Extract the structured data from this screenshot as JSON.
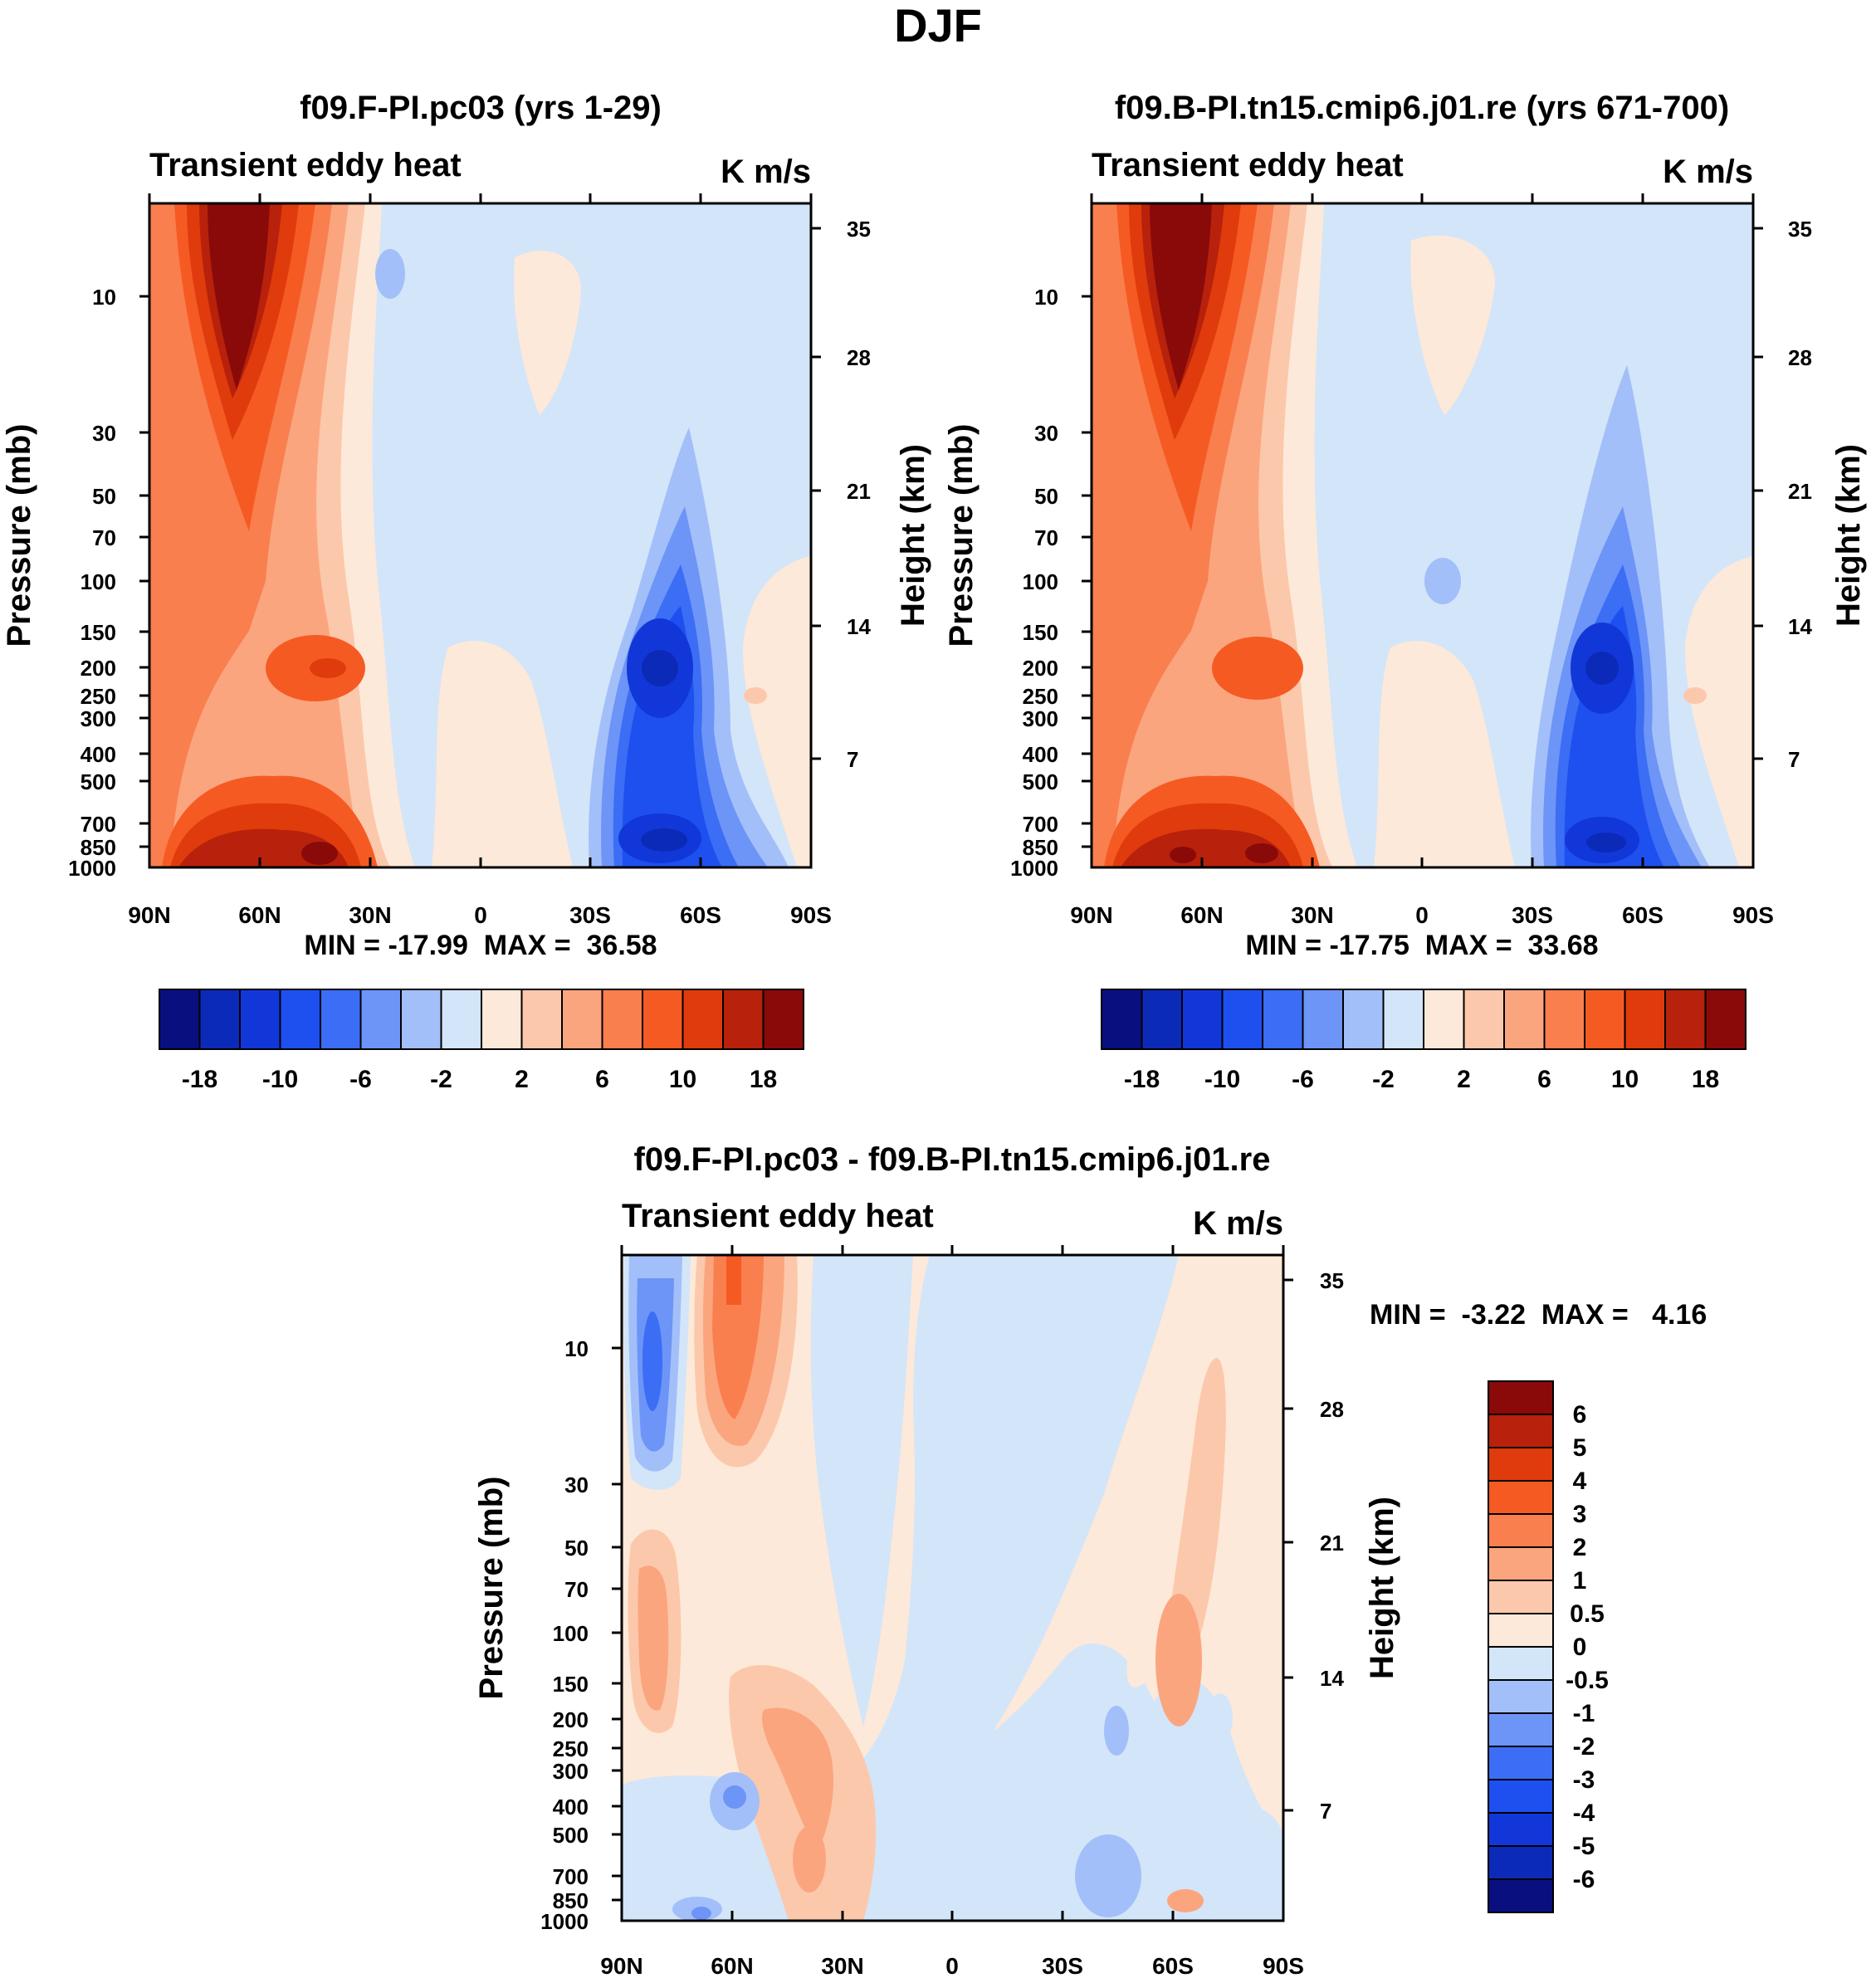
{
  "figure_title": "DJF",
  "colors": {
    "neg": [
      "#0a0f80",
      "#0c2ab8",
      "#1237d9",
      "#1e50f0",
      "#3b6df5",
      "#6d94f7",
      "#a3bff9",
      "#d3e5f9"
    ],
    "pos": [
      "#fde9d9",
      "#fcc8ab",
      "#fba57f",
      "#f97f4f",
      "#f65a23",
      "#e03b0c",
      "#b8210b",
      "#8a0a0a"
    ]
  },
  "chart_data": [
    {
      "type": "contour",
      "title": "f09.F-PI.pc03 (yrs 1-29)",
      "left_label": "Transient eddy heat",
      "right_label": "K m/s",
      "ylabel": "Pressure (mb)",
      "y2label": "Height (km)",
      "xticks": [
        "90N",
        "60N",
        "30N",
        "0",
        "30S",
        "60S",
        "90S"
      ],
      "pressure_ticks": [
        "10",
        "30",
        "50",
        "70",
        "100",
        "150",
        "200",
        "250",
        "300",
        "400",
        "500",
        "700",
        "850",
        "1000"
      ],
      "height_ticks": [
        "35",
        "28",
        "21",
        "14",
        "7"
      ],
      "min_max": "MIN = -17.99  MAX =  36.58",
      "colorbar_ticks": [
        "-18",
        "-10",
        "-6",
        "-2",
        "2",
        "6",
        "10",
        "18"
      ],
      "features": [
        {
          "lat": 60,
          "p": 15,
          "value": 36.58
        },
        {
          "lat": 50,
          "p": 900,
          "value": 25
        },
        {
          "lat": 42,
          "p": 200,
          "value": 14
        },
        {
          "lat": -48,
          "p": 200,
          "value": -17.99
        },
        {
          "lat": -48,
          "p": 850,
          "value": -15
        }
      ]
    },
    {
      "type": "contour",
      "title": "f09.B-PI.tn15.cmip6.j01.re (yrs 671-700)",
      "left_label": "Transient eddy heat",
      "right_label": "K m/s",
      "ylabel": "Pressure (mb)",
      "y2label": "Height (km)",
      "xticks": [
        "90N",
        "60N",
        "30N",
        "0",
        "30S",
        "60S",
        "90S"
      ],
      "pressure_ticks": [
        "10",
        "30",
        "50",
        "70",
        "100",
        "150",
        "200",
        "250",
        "300",
        "400",
        "500",
        "700",
        "850",
        "1000"
      ],
      "height_ticks": [
        "35",
        "28",
        "21",
        "14",
        "7"
      ],
      "min_max": "MIN = -17.75  MAX =  33.68",
      "colorbar_ticks": [
        "-18",
        "-10",
        "-6",
        "-2",
        "2",
        "6",
        "10",
        "18"
      ],
      "features": [
        {
          "lat": 60,
          "p": 15,
          "value": 33.68
        },
        {
          "lat": 50,
          "p": 900,
          "value": 24
        },
        {
          "lat": 42,
          "p": 200,
          "value": 13
        },
        {
          "lat": -48,
          "p": 200,
          "value": -17.75
        },
        {
          "lat": -48,
          "p": 850,
          "value": -14
        }
      ]
    },
    {
      "type": "contour",
      "title": "f09.F-PI.pc03 - f09.B-PI.tn15.cmip6.j01.re",
      "left_label": "Transient eddy heat",
      "right_label": "K m/s",
      "ylabel": "Pressure (mb)",
      "y2label": "Height (km)",
      "xticks": [
        "90N",
        "60N",
        "30N",
        "0",
        "30S",
        "60S",
        "90S"
      ],
      "pressure_ticks": [
        "10",
        "30",
        "50",
        "70",
        "100",
        "150",
        "200",
        "250",
        "300",
        "400",
        "500",
        "700",
        "850",
        "1000"
      ],
      "height_ticks": [
        "35",
        "28",
        "21",
        "14",
        "7"
      ],
      "min_max": "MIN =  -3.22  MAX =   4.16",
      "colorbar_ticks": [
        "6",
        "5",
        "4",
        "3",
        "2",
        "1",
        "0.5",
        "0",
        "-0.5",
        "-1",
        "-2",
        "-3",
        "-4",
        "-5",
        "-6"
      ],
      "features": [
        {
          "lat": 81,
          "p": 12,
          "value": -3.22
        },
        {
          "lat": 60,
          "p": 12,
          "value": 4.16
        },
        {
          "lat": 38,
          "p": 250,
          "value": 2
        },
        {
          "lat": -60,
          "p": 130,
          "value": 1.5
        },
        {
          "lat": 66,
          "p": 400,
          "value": -1.2
        }
      ]
    }
  ]
}
